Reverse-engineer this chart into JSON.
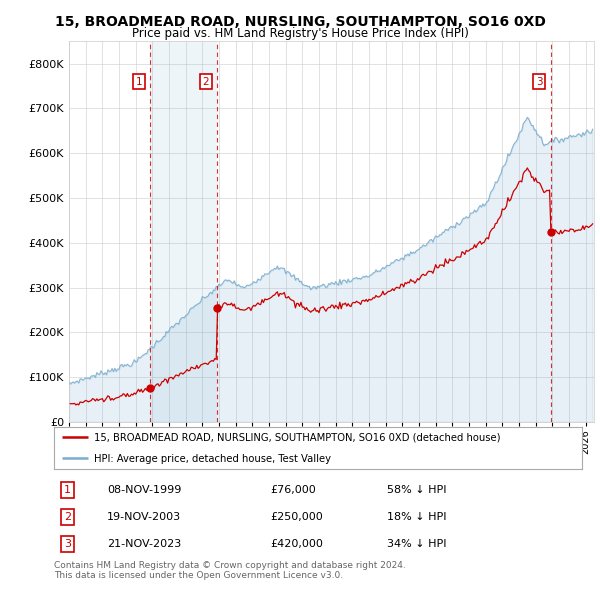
{
  "title": "15, BROADMEAD ROAD, NURSLING, SOUTHAMPTON, SO16 0XD",
  "subtitle": "Price paid vs. HM Land Registry's House Price Index (HPI)",
  "legend_line1": "15, BROADMEAD ROAD, NURSLING, SOUTHAMPTON, SO16 0XD (detached house)",
  "legend_line2": "HPI: Average price, detached house, Test Valley",
  "footer": "Contains HM Land Registry data © Crown copyright and database right 2024.\nThis data is licensed under the Open Government Licence v3.0.",
  "transactions": [
    {
      "num": 1,
      "date": "08-NOV-1999",
      "price": 76000,
      "hpi_diff": "58% ↓ HPI",
      "x_year": 1999.86
    },
    {
      "num": 2,
      "date": "19-NOV-2003",
      "price": 250000,
      "hpi_diff": "18% ↓ HPI",
      "x_year": 2003.88
    },
    {
      "num": 3,
      "date": "21-NOV-2023",
      "price": 420000,
      "hpi_diff": "34% ↓ HPI",
      "x_year": 2023.89
    }
  ],
  "red_line_color": "#cc0000",
  "blue_line_color": "#7aadce",
  "blue_fill_color": "#ddeeff",
  "vline_color": "#cc0000",
  "grid_color": "#cccccc",
  "background_color": "#ffffff",
  "ylim": [
    0,
    850000
  ],
  "xlim_start": 1995,
  "xlim_end": 2026.5,
  "yticks": [
    0,
    100000,
    200000,
    300000,
    400000,
    500000,
    600000,
    700000,
    800000
  ]
}
